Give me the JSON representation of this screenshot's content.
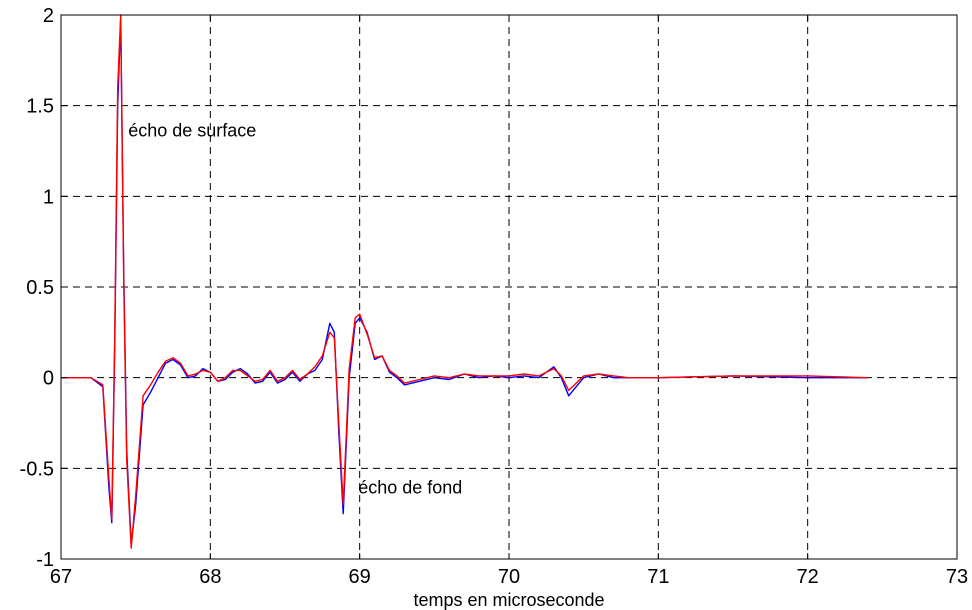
{
  "chart_data": {
    "type": "line",
    "xlabel": "temps en microseconde",
    "ylabel": "",
    "xlim": [
      67,
      73
    ],
    "ylim": [
      -1,
      2
    ],
    "xticks": [
      67,
      68,
      69,
      70,
      71,
      72,
      73
    ],
    "yticks": [
      -1,
      -0.5,
      0,
      0.5,
      1,
      1.5,
      2
    ],
    "xtick_labels": [
      "67",
      "68",
      "69",
      "70",
      "71",
      "72",
      "73"
    ],
    "ytick_labels": [
      "-1",
      "-0.5",
      "0",
      "0.5",
      "1",
      "1.5",
      "2"
    ],
    "grid": true,
    "legend": "none",
    "annotations": [
      {
        "text": "écho de surface",
        "x": 67.45,
        "y": 1.33
      },
      {
        "text": "écho de fond",
        "x": 68.99,
        "y": -0.64
      }
    ],
    "series": [
      {
        "color": "#0000ff",
        "x": [
          67.0,
          67.2,
          67.28,
          67.32,
          67.34,
          67.36,
          67.38,
          67.4,
          67.42,
          67.44,
          67.47,
          67.5,
          67.55,
          67.6,
          67.65,
          67.7,
          67.75,
          67.8,
          67.85,
          67.9,
          67.95,
          68.0,
          68.05,
          68.1,
          68.15,
          68.2,
          68.25,
          68.3,
          68.35,
          68.4,
          68.45,
          68.5,
          68.55,
          68.6,
          68.65,
          68.7,
          68.75,
          68.8,
          68.83,
          68.86,
          68.89,
          68.93,
          68.97,
          69.0,
          69.05,
          69.1,
          69.15,
          69.2,
          69.25,
          69.3,
          69.4,
          69.5,
          69.6,
          69.7,
          69.8,
          69.9,
          70.0,
          70.1,
          70.2,
          70.3,
          70.35,
          70.4,
          70.45,
          70.5,
          70.6,
          70.7,
          70.8,
          71.0,
          71.5,
          72.0,
          72.4
        ],
        "y": [
          0.0,
          0.0,
          -0.05,
          -0.6,
          -0.8,
          0.2,
          1.5,
          1.98,
          0.6,
          -0.4,
          -0.92,
          -0.7,
          -0.15,
          -0.08,
          0.0,
          0.08,
          0.1,
          0.07,
          0.0,
          0.01,
          0.05,
          0.03,
          -0.02,
          -0.01,
          0.03,
          0.05,
          0.02,
          -0.03,
          -0.02,
          0.03,
          -0.03,
          -0.01,
          0.03,
          -0.02,
          0.02,
          0.04,
          0.1,
          0.3,
          0.25,
          -0.3,
          -0.75,
          0.0,
          0.3,
          0.33,
          0.25,
          0.1,
          0.12,
          0.03,
          0.0,
          -0.04,
          -0.02,
          0.0,
          -0.01,
          0.02,
          0.0,
          0.01,
          0.0,
          0.01,
          0.0,
          0.06,
          0.0,
          -0.1,
          -0.05,
          0.0,
          0.02,
          0.0,
          0.0,
          0.0,
          0.01,
          0.0,
          0.0
        ]
      },
      {
        "color": "#ff0000",
        "x": [
          67.0,
          67.2,
          67.28,
          67.32,
          67.34,
          67.36,
          67.38,
          67.4,
          67.42,
          67.44,
          67.47,
          67.5,
          67.55,
          67.6,
          67.65,
          67.7,
          67.75,
          67.8,
          67.85,
          67.9,
          67.95,
          68.0,
          68.05,
          68.1,
          68.15,
          68.2,
          68.25,
          68.3,
          68.35,
          68.4,
          68.45,
          68.5,
          68.55,
          68.6,
          68.65,
          68.7,
          68.75,
          68.8,
          68.83,
          68.86,
          68.89,
          68.93,
          68.97,
          69.0,
          69.05,
          69.1,
          69.15,
          69.2,
          69.25,
          69.3,
          69.4,
          69.5,
          69.6,
          69.7,
          69.8,
          69.9,
          70.0,
          70.1,
          70.2,
          70.3,
          70.35,
          70.4,
          70.45,
          70.5,
          70.6,
          70.7,
          70.8,
          71.0,
          71.5,
          72.0,
          72.4
        ],
        "y": [
          0.0,
          0.0,
          -0.04,
          -0.55,
          -0.78,
          0.25,
          1.6,
          2.0,
          0.55,
          -0.45,
          -0.94,
          -0.65,
          -0.1,
          -0.04,
          0.03,
          0.09,
          0.11,
          0.08,
          0.01,
          0.02,
          0.04,
          0.03,
          -0.02,
          0.0,
          0.04,
          0.04,
          0.01,
          -0.02,
          -0.01,
          0.04,
          -0.02,
          0.0,
          0.04,
          -0.01,
          0.02,
          0.06,
          0.12,
          0.25,
          0.22,
          -0.25,
          -0.7,
          0.05,
          0.33,
          0.35,
          0.24,
          0.11,
          0.12,
          0.04,
          0.01,
          -0.03,
          -0.01,
          0.01,
          0.0,
          0.02,
          0.01,
          0.01,
          0.01,
          0.02,
          0.01,
          0.05,
          0.01,
          -0.07,
          -0.03,
          0.01,
          0.02,
          0.01,
          0.0,
          0.0,
          0.01,
          0.01,
          0.0
        ]
      }
    ]
  }
}
